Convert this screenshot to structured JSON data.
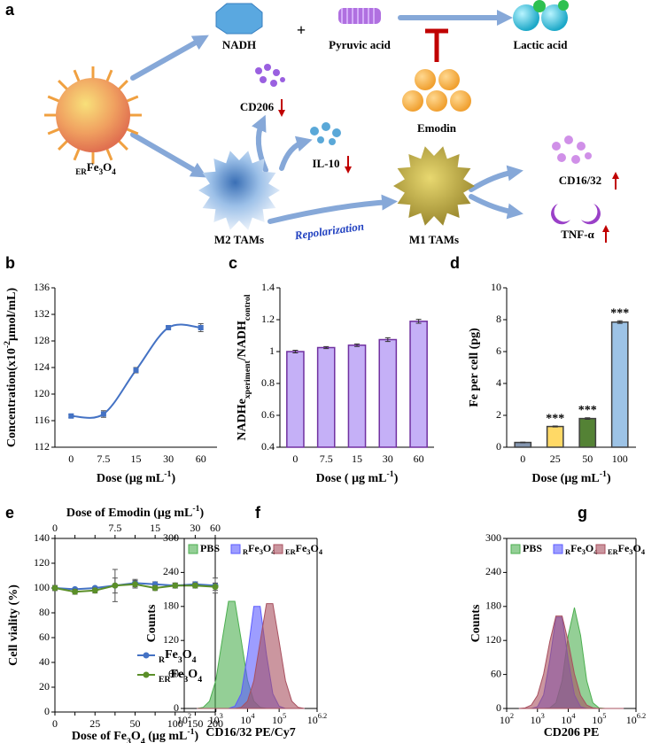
{
  "diagram": {
    "panel": "a",
    "nadh": "NADH",
    "plus": "+",
    "pyruvic": "Pyruvic acid",
    "lactic": "Lactic acid",
    "emodin": "Emodin",
    "particle": [
      {
        "text": "ER",
        "shift": "sub"
      },
      {
        "text": "Fe"
      },
      {
        "text": "3",
        "shift": "sub"
      },
      {
        "text": "O"
      },
      {
        "text": "4",
        "shift": "sub"
      }
    ],
    "cd206": "CD206",
    "il10": "IL-10",
    "m2": "M2 TAMs",
    "repolarization": "Repolarization",
    "m1": "M1 TAMs",
    "cd1632": "CD16/32",
    "tnf": "TNF-α"
  },
  "chart_data": [
    {
      "panel": "b",
      "type": "line",
      "smooth": true,
      "marker": "square",
      "color": "#4472c4",
      "categories": [
        "0",
        "7.5",
        "15",
        "30",
        "60"
      ],
      "values": [
        116.7,
        117.0,
        123.6,
        130.0,
        130.0
      ],
      "errors": [
        0.2,
        0.5,
        0.4,
        0.2,
        0.6
      ],
      "ylim": [
        112,
        136
      ],
      "yticks": [
        112,
        116,
        120,
        124,
        128,
        132,
        136
      ],
      "xlabel": [
        {
          "text": "Dose (μg mL"
        },
        {
          "text": "-1",
          "shift": "sup"
        },
        {
          "text": ")"
        }
      ],
      "ylabel": [
        {
          "text": "Concentration(x10"
        },
        {
          "text": "-2",
          "shift": "sup"
        },
        {
          "text": "μmol/mL)"
        }
      ]
    },
    {
      "panel": "c",
      "type": "bar",
      "color": "#c5b0f7",
      "edgecolor": "#7030a0",
      "categories": [
        "0",
        "7.5",
        "15",
        "30",
        "60"
      ],
      "values": [
        1.0,
        1.025,
        1.04,
        1.075,
        1.19
      ],
      "errors": [
        0.008,
        0.006,
        0.008,
        0.012,
        0.012
      ],
      "ylim": [
        0.4,
        1.4
      ],
      "yticks": [
        0.4,
        0.6,
        0.8,
        1,
        1.2,
        1.4
      ],
      "xlabel": [
        {
          "text": "Dose ( μg mL"
        },
        {
          "text": "-1",
          "shift": "sup"
        },
        {
          "text": ")"
        }
      ],
      "ylabel": [
        {
          "text": "NADHe"
        },
        {
          "text": "xperiment",
          "shift": "sub"
        },
        {
          "text": "/NADH"
        },
        {
          "text": "control",
          "shift": "sub"
        }
      ]
    },
    {
      "panel": "d",
      "type": "bar",
      "colors": [
        "#8496b0",
        "#ffd966",
        "#548235",
        "#9dc3e6"
      ],
      "edgecolor": "#404040",
      "categories": [
        "0",
        "25",
        "50",
        "100"
      ],
      "values": [
        0.3,
        1.3,
        1.8,
        7.85
      ],
      "errors": [
        0.02,
        0.03,
        0.05,
        0.08
      ],
      "annotations": [
        null,
        "***",
        "***",
        "***"
      ],
      "ylim": [
        0,
        10
      ],
      "yticks": [
        0,
        2,
        4,
        6,
        8,
        10
      ],
      "xlabel": [
        {
          "text": "Dose (μg mL"
        },
        {
          "text": "-1",
          "shift": "sup"
        },
        {
          "text": ")"
        }
      ],
      "ylabel": "Fe per cell (pg)"
    },
    {
      "panel": "e",
      "type": "line",
      "marker": "circle",
      "legend": "lower right",
      "categories": [
        "0",
        null,
        "25",
        null,
        "50",
        null,
        "100",
        "150",
        "200"
      ],
      "x2categories": [
        "0",
        null,
        null,
        "7.5",
        null,
        "15",
        null,
        "30",
        "60"
      ],
      "x2label": [
        {
          "text": "Dose of Emodin (μg mL"
        },
        {
          "text": "-1",
          "shift": "sup"
        },
        {
          "text": ")"
        }
      ],
      "xlabel": [
        {
          "text": "Dose of Fe"
        },
        {
          "text": "3",
          "shift": "sub"
        },
        {
          "text": "O"
        },
        {
          "text": "4",
          "shift": "sub"
        },
        {
          "text": " (μg mL"
        },
        {
          "text": "-1",
          "shift": "sup"
        },
        {
          "text": ")"
        }
      ],
      "ylabel": "Cell viality (%)",
      "ylim": [
        0,
        140
      ],
      "yticks": [
        0,
        20,
        40,
        60,
        80,
        100,
        120,
        140
      ],
      "series": [
        {
          "name": [
            {
              "text": "R",
              "shift": "sub"
            },
            {
              "text": "Fe"
            },
            {
              "text": "3",
              "shift": "sub"
            },
            {
              "text": "O"
            },
            {
              "text": "4",
              "shift": "sub"
            }
          ],
          "color": "#4472c4",
          "values": [
            100,
            99,
            100,
            102,
            104,
            103,
            102,
            103,
            102
          ],
          "errors": [
            2,
            1,
            1,
            13,
            3,
            2,
            2,
            2,
            6
          ]
        },
        {
          "name": [
            {
              "text": "ER",
              "shift": "sub"
            },
            {
              "text": "Fe"
            },
            {
              "text": "3",
              "shift": "sub"
            },
            {
              "text": "O"
            },
            {
              "text": "4",
              "shift": "sub"
            }
          ],
          "color": "#5b8f29",
          "values": [
            100,
            97,
            98,
            102,
            103,
            100,
            102,
            102,
            101
          ],
          "errors": [
            2,
            2,
            2,
            6,
            3,
            2,
            2,
            2,
            3
          ]
        }
      ]
    },
    {
      "panel": "f",
      "type": "area",
      "xscale": "log",
      "alpha": 0.6,
      "legend": "upper left",
      "xlim": [
        100,
        1584893
      ],
      "xticks": [
        {
          "value": 100,
          "label": [
            {
              "text": "10"
            },
            {
              "text": "2",
              "shift": "sup"
            }
          ]
        },
        {
          "value": 1000,
          "label": [
            {
              "text": "10"
            },
            {
              "text": "3",
              "shift": "sup"
            }
          ]
        },
        {
          "value": 10000,
          "label": [
            {
              "text": "10"
            },
            {
              "text": "4",
              "shift": "sup"
            }
          ]
        },
        {
          "value": 100000,
          "label": [
            {
              "text": "10"
            },
            {
              "text": "5",
              "shift": "sup"
            }
          ]
        },
        {
          "value": 1584893,
          "label": [
            {
              "text": "10"
            },
            {
              "text": "6.2",
              "shift": "sup"
            }
          ]
        }
      ],
      "ylim": [
        0,
        300
      ],
      "yticks": [
        0,
        60,
        120,
        180,
        240,
        300
      ],
      "ylabel": "Counts",
      "xlabel": "CD16/32 PE/Cy7",
      "x": [
        251,
        398,
        631,
        1000,
        1585,
        2512,
        3981,
        6310,
        10000,
        15849,
        25119,
        39811,
        63096,
        100000,
        158489,
        251189,
        398107,
        630957
      ],
      "series": [
        {
          "name": "PBS",
          "color": "#4caf50",
          "values": [
            0,
            2,
            13,
            50,
            121,
            189,
            189,
            121,
            50,
            13,
            2,
            0,
            0,
            0,
            0,
            0,
            0,
            0
          ]
        },
        {
          "name": [
            {
              "text": "R",
              "shift": "sub"
            },
            {
              "text": "Fe"
            },
            {
              "text": "3",
              "shift": "sub"
            },
            {
              "text": "O"
            },
            {
              "text": "4",
              "shift": "sub"
            }
          ],
          "color": "#5c5cff",
          "values": [
            0,
            0,
            0,
            0,
            0,
            0,
            4,
            26,
            95,
            180,
            180,
            95,
            26,
            4,
            0,
            0,
            0,
            0
          ]
        },
        {
          "name": [
            {
              "text": "ER",
              "shift": "sub"
            },
            {
              "text": "Fe"
            },
            {
              "text": "3",
              "shift": "sub"
            },
            {
              "text": "O"
            },
            {
              "text": "4",
              "shift": "sub"
            }
          ],
          "color": "#a8505f",
          "values": [
            0,
            0,
            0,
            0,
            0,
            0,
            0,
            2,
            13,
            49,
            118,
            185,
            185,
            118,
            49,
            13,
            2,
            0
          ]
        }
      ]
    },
    {
      "panel": "g",
      "type": "area",
      "xscale": "log",
      "alpha": 0.6,
      "legend": "upper left",
      "xlim": [
        100,
        1584893
      ],
      "xticks": [
        {
          "value": 100,
          "label": [
            {
              "text": "10"
            },
            {
              "text": "2",
              "shift": "sup"
            }
          ]
        },
        {
          "value": 1000,
          "label": [
            {
              "text": "10"
            },
            {
              "text": "3",
              "shift": "sup"
            }
          ]
        },
        {
          "value": 10000,
          "label": [
            {
              "text": "10"
            },
            {
              "text": "4",
              "shift": "sup"
            }
          ]
        },
        {
          "value": 100000,
          "label": [
            {
              "text": "10"
            },
            {
              "text": "5",
              "shift": "sup"
            }
          ]
        },
        {
          "value": 1584893,
          "label": [
            {
              "text": "10"
            },
            {
              "text": "6.2",
              "shift": "sup"
            }
          ]
        }
      ],
      "ylim": [
        0,
        300
      ],
      "yticks": [
        0,
        60,
        120,
        180,
        240,
        300
      ],
      "ylabel": "Counts",
      "xlabel": "CD206 PE",
      "x": [
        251,
        398,
        631,
        1000,
        1585,
        2512,
        3981,
        6310,
        10000,
        15849,
        25119,
        39811,
        63096,
        100000,
        158489,
        251189,
        398107,
        630957
      ],
      "series": [
        {
          "name": "PBS",
          "color": "#4caf50",
          "values": [
            0,
            0,
            0,
            0,
            0,
            1,
            10,
            49,
            129,
            178,
            129,
            49,
            10,
            1,
            0,
            0,
            0,
            0
          ]
        },
        {
          "name": [
            {
              "text": "R",
              "shift": "sub"
            },
            {
              "text": "Fe"
            },
            {
              "text": "3",
              "shift": "sub"
            },
            {
              "text": "O"
            },
            {
              "text": "4",
              "shift": "sub"
            }
          ],
          "color": "#5c5cff",
          "values": [
            0,
            0,
            0,
            3,
            24,
            85,
            161,
            161,
            85,
            24,
            3,
            0,
            0,
            0,
            0,
            0,
            0,
            0
          ]
        },
        {
          "name": [
            {
              "text": "ER",
              "shift": "sub"
            },
            {
              "text": "Fe"
            },
            {
              "text": "3",
              "shift": "sub"
            },
            {
              "text": "O"
            },
            {
              "text": "4",
              "shift": "sub"
            }
          ],
          "color": "#a8505f",
          "values": [
            0,
            1,
            6,
            23,
            61,
            118,
            163,
            163,
            118,
            61,
            23,
            6,
            1,
            0,
            0,
            0,
            0,
            0
          ]
        }
      ]
    }
  ]
}
